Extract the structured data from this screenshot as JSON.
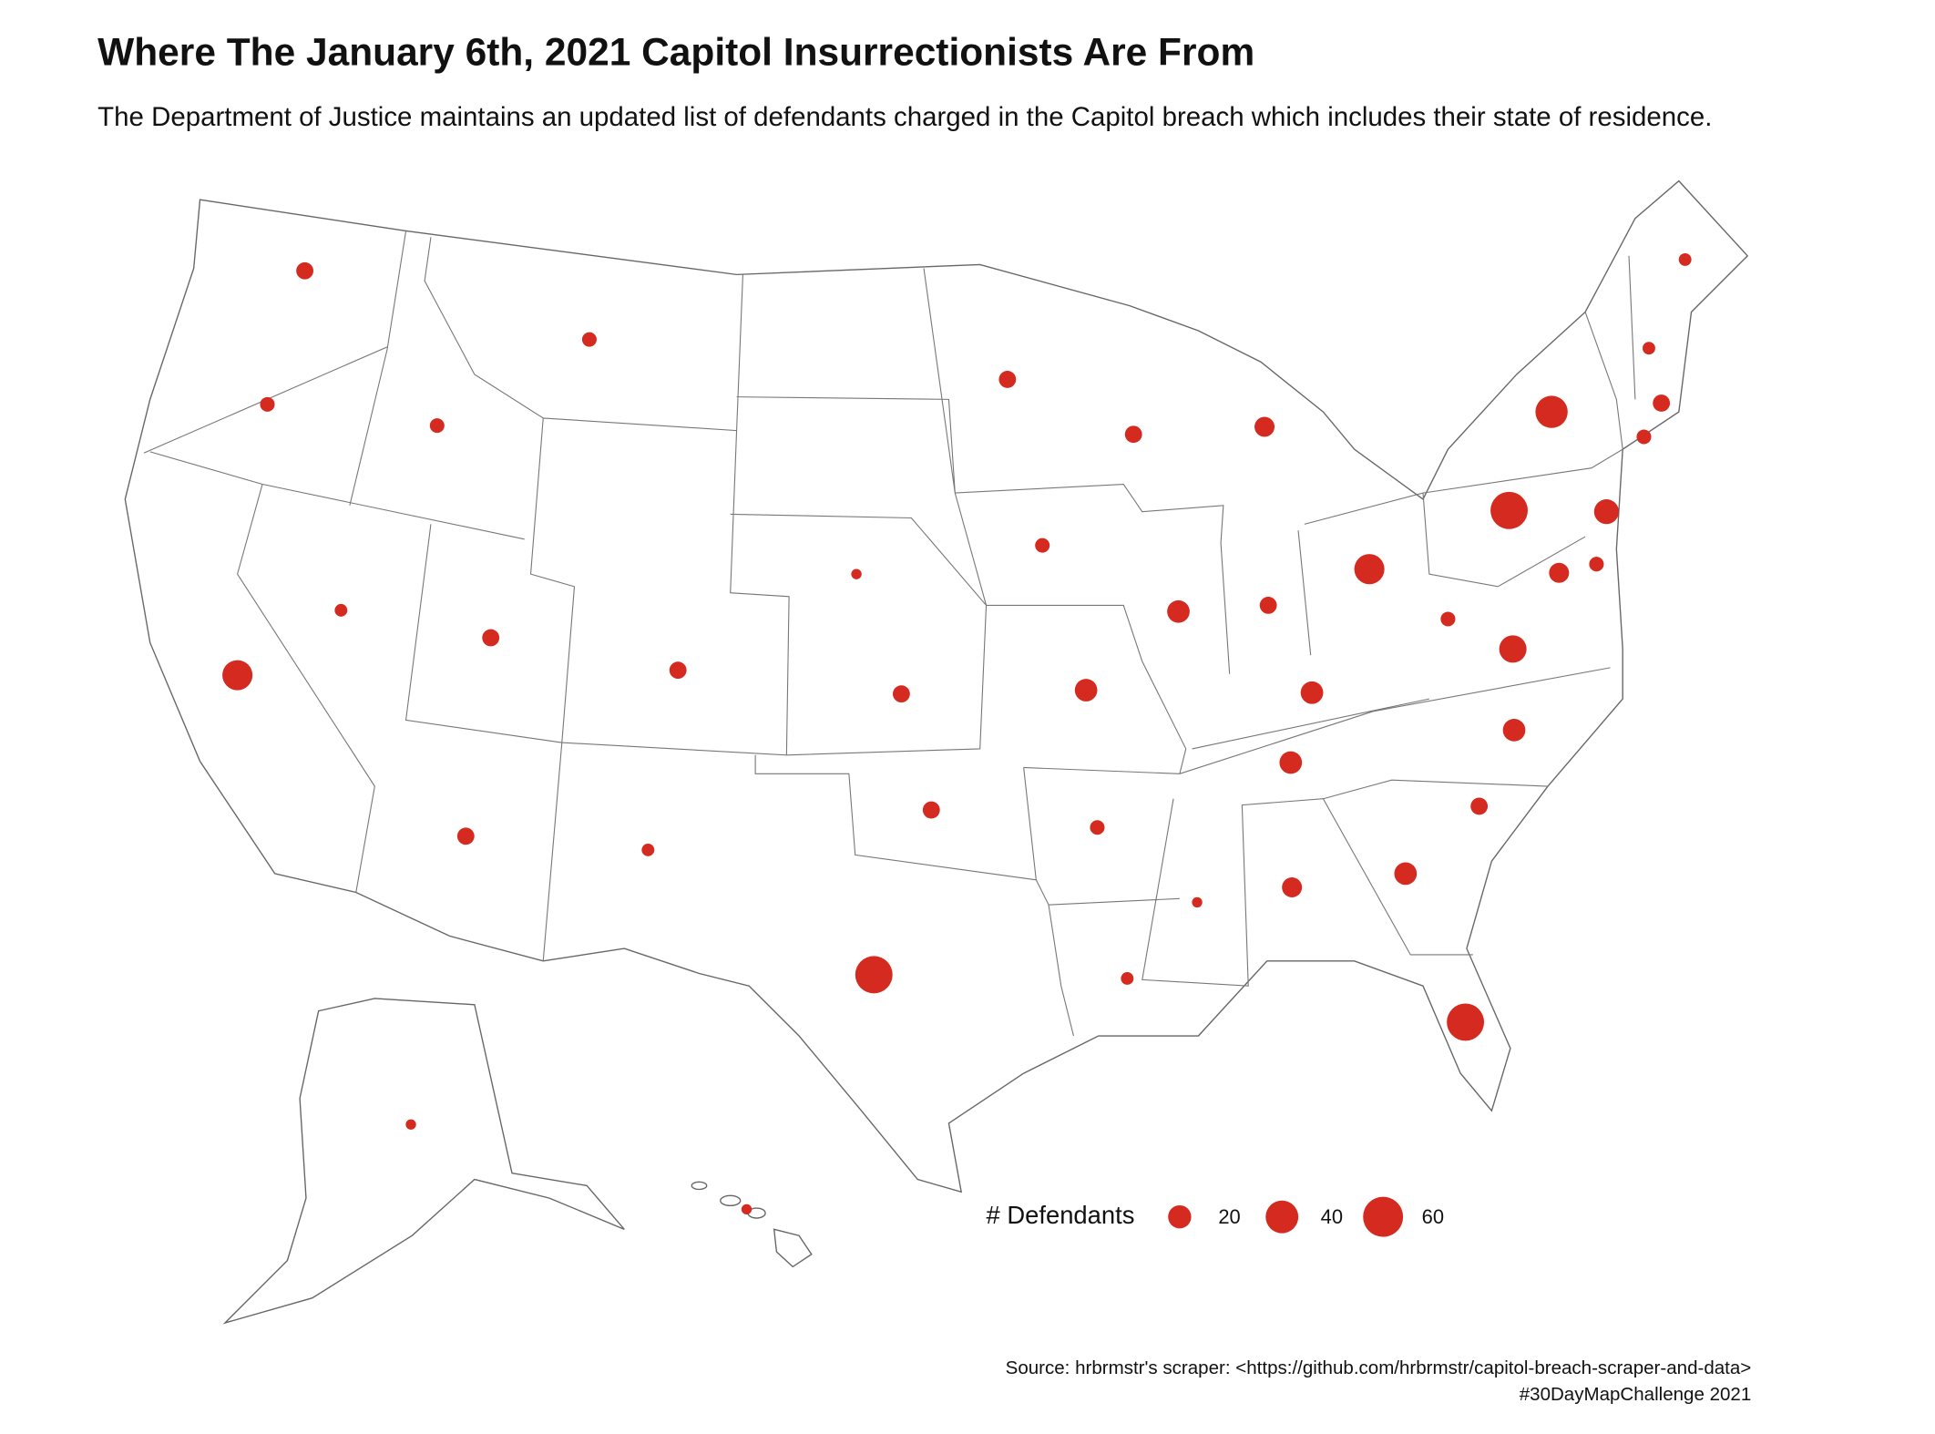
{
  "chart_data": {
    "type": "bubble_map",
    "title": "Where The January 6th, 2021 Capitol Insurrectionists Are From",
    "subtitle": "The Department of Justice maintains an updated list of defendants charged in the Capitol breach which includes their state of residence.",
    "size_legend_title": "# Defendants",
    "size_legend": [
      20,
      40,
      60
    ],
    "color": "#d52a1f",
    "values": [
      11,
      8,
      34,
      6,
      8,
      8,
      11,
      11,
      11,
      6,
      4,
      11,
      11,
      52,
      11,
      8,
      19,
      8,
      6,
      11,
      19,
      4,
      15,
      11,
      19,
      19,
      15,
      34,
      19,
      52,
      11,
      19,
      28,
      8,
      52,
      39,
      23,
      15,
      8,
      8,
      11,
      6,
      6,
      4,
      4
    ],
    "source": "Source: hrbrmstr's scraper: <https://github.com/hrbrmstr/capitol-breach-scraper-and-data>",
    "note": "#30DayMapChallenge 2021"
  }
}
